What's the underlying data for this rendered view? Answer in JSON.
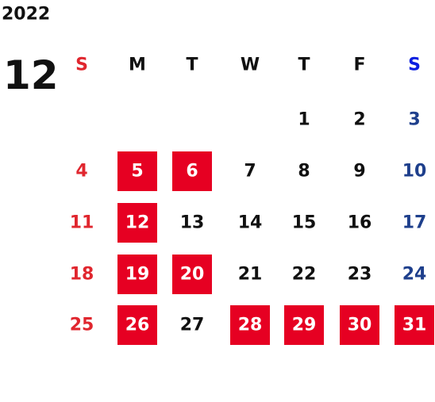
{
  "calendar": {
    "year": "2022",
    "month": "12",
    "weekdays": [
      "S",
      "M",
      "T",
      "W",
      "T",
      "F",
      "S"
    ],
    "weeks": [
      [
        null,
        null,
        null,
        null,
        {
          "day": 1,
          "highlight": false
        },
        {
          "day": 2,
          "highlight": false
        },
        {
          "day": 3,
          "highlight": false
        }
      ],
      [
        {
          "day": 4,
          "highlight": false
        },
        {
          "day": 5,
          "highlight": true
        },
        {
          "day": 6,
          "highlight": true
        },
        {
          "day": 7,
          "highlight": false
        },
        {
          "day": 8,
          "highlight": false
        },
        {
          "day": 9,
          "highlight": false
        },
        {
          "day": 10,
          "highlight": false
        }
      ],
      [
        {
          "day": 11,
          "highlight": false
        },
        {
          "day": 12,
          "highlight": true
        },
        {
          "day": 13,
          "highlight": false
        },
        {
          "day": 14,
          "highlight": false
        },
        {
          "day": 15,
          "highlight": false
        },
        {
          "day": 16,
          "highlight": false
        },
        {
          "day": 17,
          "highlight": false
        }
      ],
      [
        {
          "day": 18,
          "highlight": false
        },
        {
          "day": 19,
          "highlight": true
        },
        {
          "day": 20,
          "highlight": true
        },
        {
          "day": 21,
          "highlight": false
        },
        {
          "day": 22,
          "highlight": false
        },
        {
          "day": 23,
          "highlight": false
        },
        {
          "day": 24,
          "highlight": false
        }
      ],
      [
        {
          "day": 25,
          "highlight": false
        },
        {
          "day": 26,
          "highlight": true
        },
        {
          "day": 27,
          "highlight": false
        },
        {
          "day": 28,
          "highlight": true
        },
        {
          "day": 29,
          "highlight": true
        },
        {
          "day": 30,
          "highlight": true
        },
        {
          "day": 31,
          "highlight": true
        }
      ]
    ],
    "colors": {
      "weekday": "#111111",
      "sunday": "#e0262e",
      "saturday_header": "#0a1ee0",
      "saturday": "#1e3f8c",
      "highlight": "#e60022",
      "highlight_text": "#ffffff"
    }
  }
}
